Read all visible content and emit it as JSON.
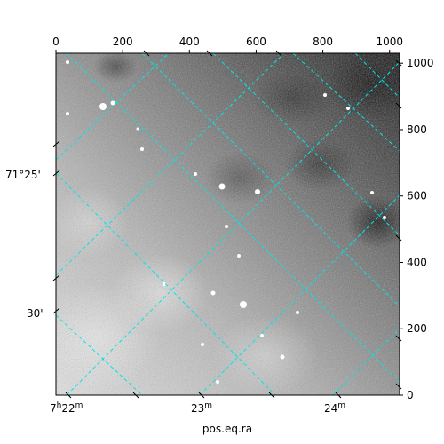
{
  "chart_data": {
    "type": "heatmap",
    "colormap": "grayscale",
    "pixel_axis_bottom_top": {
      "ticks": [
        0,
        200,
        400,
        600,
        800,
        1000
      ],
      "range": [
        0,
        1030
      ]
    },
    "pixel_axis_left_right": {
      "ticks": [
        0,
        200,
        400,
        600,
        800,
        1000
      ],
      "range": [
        0,
        1030
      ]
    },
    "wcs_ra_ticks": [
      "7h22m",
      "23m",
      "24m"
    ],
    "wcs_dec_ticks": [
      "71°25'",
      "30'"
    ],
    "xlabel": "pos.eq.ra",
    "ylabel": "",
    "grid": true,
    "grid_color": "#00e5e5"
  },
  "labels": {
    "ra_major": "7",
    "ra_h": "h",
    "ra_22": "22",
    "ra_m": "m",
    "ra_23": "23",
    "ra_24": "24",
    "dec_1": "71°25'",
    "dec_2": "30'",
    "xlabel": "pos.eq.ra"
  }
}
